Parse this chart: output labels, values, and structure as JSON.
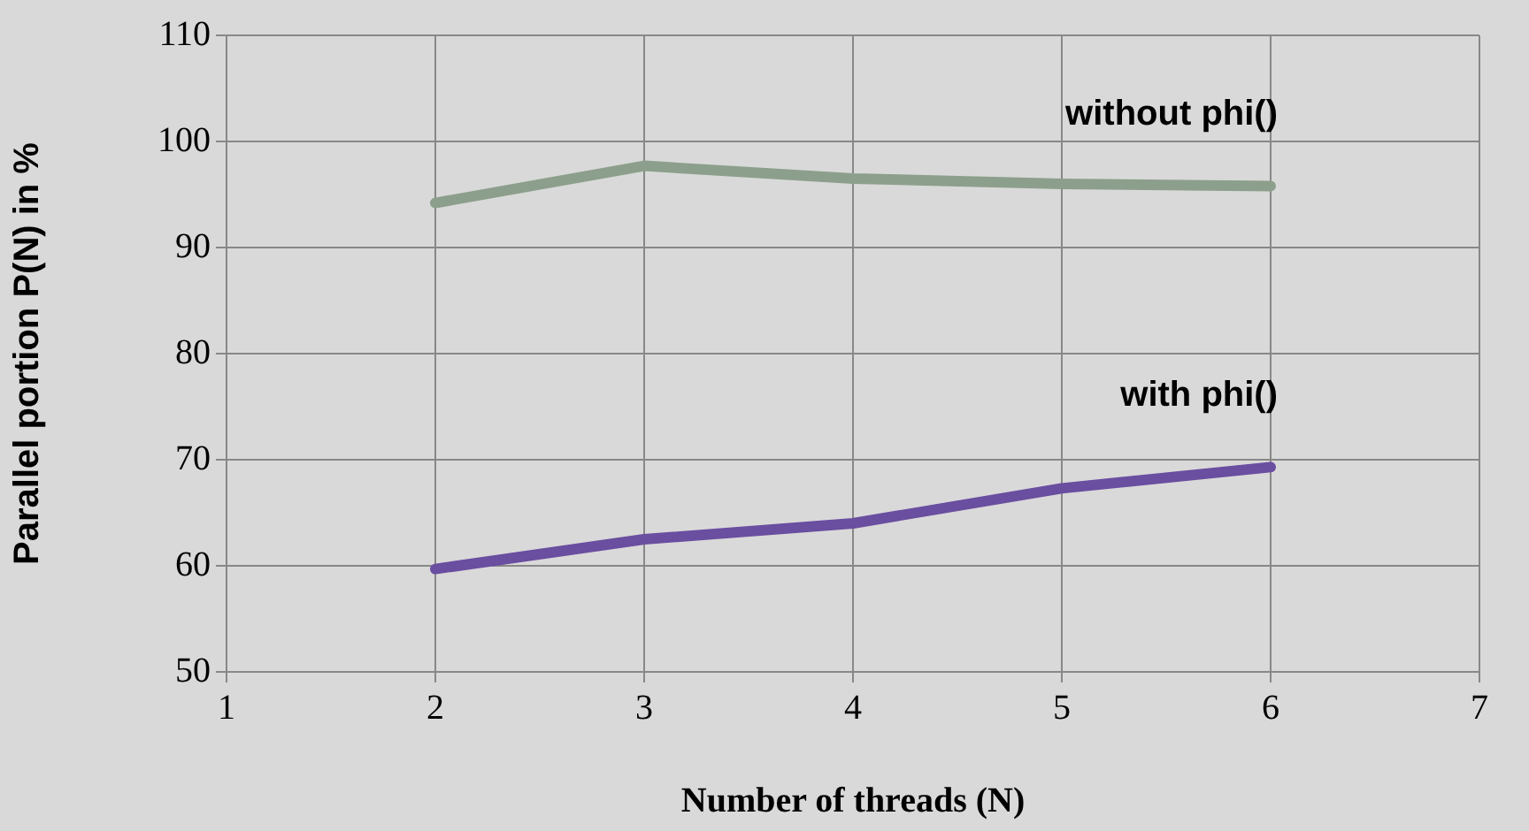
{
  "chart_data": {
    "type": "line",
    "xlabel": "Number of threads (N)",
    "ylabel": "Parallel portion P(N) in %",
    "x": [
      2,
      3,
      4,
      5,
      6
    ],
    "series": [
      {
        "name": "without phi()",
        "color": "#8c9f8c",
        "values": [
          94.2,
          97.7,
          96.5,
          96.0,
          95.8
        ]
      },
      {
        "name": "with phi()",
        "color": "#6a4ea0",
        "values": [
          59.7,
          62.5,
          64.0,
          67.3,
          69.3
        ]
      }
    ],
    "xlim": [
      1,
      7
    ],
    "xticks": [
      1,
      2,
      3,
      4,
      5,
      6,
      7
    ],
    "ylim": [
      50,
      110
    ],
    "yticks": [
      50,
      60,
      70,
      80,
      90,
      100,
      110
    ],
    "grid": true,
    "legend": false,
    "marker": "none",
    "line_style": "solid"
  }
}
